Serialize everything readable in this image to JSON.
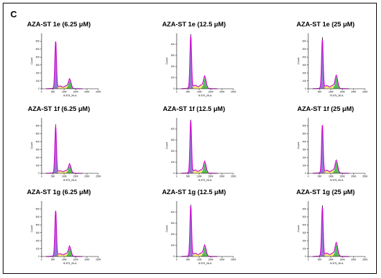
{
  "panel_label": "C",
  "colors": {
    "g1_fill": "#7b68c8",
    "s_fill": "#f2e56b",
    "g2_fill": "#3cb043",
    "fit_line": "#d400d4",
    "outline": "#000000",
    "peak_line": "#d400d4"
  },
  "chart_data": [
    {
      "type": "area",
      "title": "AZA-ST 1e (6.25 μM)",
      "xlabel": "B 575_26-A",
      "ylabel": "Count",
      "x_ticks": [
        "0",
        "50K",
        "100K",
        "150K",
        "200K",
        "250K"
      ],
      "xlim": [
        0,
        250000
      ],
      "ylim": [
        0,
        700
      ],
      "y_ticks": [
        "0",
        "100",
        "200",
        "300",
        "400",
        "500",
        "600"
      ],
      "g1_peak": {
        "x": 62000,
        "height": 580
      },
      "g2_peak": {
        "x": 124000,
        "height": 105
      },
      "s_level": 35
    },
    {
      "type": "area",
      "title": "AZA-ST 1e (12.5 μM)",
      "xlabel": "B 575_26-A",
      "ylabel": "Count",
      "x_ticks": [
        "0",
        "50K",
        "100K",
        "150K",
        "200K",
        "250K"
      ],
      "xlim": [
        0,
        250000
      ],
      "ylim": [
        0,
        500
      ],
      "y_ticks": [
        "0",
        "100",
        "200",
        "300",
        "400"
      ],
      "g1_peak": {
        "x": 62000,
        "height": 460
      },
      "g2_peak": {
        "x": 124000,
        "height": 95
      },
      "s_level": 32
    },
    {
      "type": "area",
      "title": "AZA-ST 1e (25 μM)",
      "xlabel": "B 575_26-A",
      "ylabel": "Count",
      "x_ticks": [
        "0",
        "50K",
        "100K",
        "150K",
        "200K",
        "250K"
      ],
      "xlim": [
        0,
        250000
      ],
      "ylim": [
        0,
        700
      ],
      "y_ticks": [
        "0",
        "100",
        "200",
        "300",
        "400",
        "500",
        "600"
      ],
      "g1_peak": {
        "x": 62000,
        "height": 600
      },
      "g2_peak": {
        "x": 124000,
        "height": 145
      },
      "s_level": 40
    },
    {
      "type": "area",
      "title": "AZA-ST 1f (6.25 μM)",
      "xlabel": "B 575_26-A",
      "ylabel": "Count",
      "x_ticks": [
        "0",
        "50K",
        "100K",
        "150K",
        "200K",
        "250K"
      ],
      "xlim": [
        0,
        250000
      ],
      "ylim": [
        0,
        700
      ],
      "y_ticks": [
        "0",
        "100",
        "200",
        "300",
        "400",
        "500",
        "600"
      ],
      "g1_peak": {
        "x": 62000,
        "height": 570
      },
      "g2_peak": {
        "x": 124000,
        "height": 100
      },
      "s_level": 34
    },
    {
      "type": "area",
      "title": "AZA-ST 1f (12.5 μM)",
      "xlabel": "B 575_26-A",
      "ylabel": "Count",
      "x_ticks": [
        "0",
        "50K",
        "100K",
        "150K",
        "200K",
        "250K"
      ],
      "xlim": [
        0,
        250000
      ],
      "ylim": [
        0,
        500
      ],
      "y_ticks": [
        "0",
        "100",
        "200",
        "300",
        "400"
      ],
      "g1_peak": {
        "x": 62000,
        "height": 460
      },
      "g2_peak": {
        "x": 124000,
        "height": 90
      },
      "s_level": 30
    },
    {
      "type": "area",
      "title": "AZA-ST 1f (25 μM)",
      "xlabel": "B 575_26-A",
      "ylabel": "Count",
      "x_ticks": [
        "0",
        "50K",
        "100K",
        "150K",
        "200K",
        "250K"
      ],
      "xlim": [
        0,
        250000
      ],
      "ylim": [
        0,
        700
      ],
      "y_ticks": [
        "0",
        "100",
        "200",
        "300",
        "400",
        "500",
        "600"
      ],
      "g1_peak": {
        "x": 62000,
        "height": 590
      },
      "g2_peak": {
        "x": 124000,
        "height": 140
      },
      "s_level": 38
    },
    {
      "type": "area",
      "title": "AZA-ST 1g (6.25 μM)",
      "xlabel": "B 575_26-A",
      "ylabel": "Count",
      "x_ticks": [
        "0",
        "50K",
        "100K",
        "150K",
        "200K",
        "250K"
      ],
      "xlim": [
        0,
        250000
      ],
      "ylim": [
        0,
        700
      ],
      "y_ticks": [
        "0",
        "100",
        "200",
        "300",
        "400",
        "500",
        "600"
      ],
      "g1_peak": {
        "x": 62000,
        "height": 560
      },
      "g2_peak": {
        "x": 124000,
        "height": 110
      },
      "s_level": 36
    },
    {
      "type": "area",
      "title": "AZA-ST 1g (12.5 μM)",
      "xlabel": "B 575_26-A",
      "ylabel": "Count",
      "x_ticks": [
        "0",
        "50K",
        "100K",
        "150K",
        "200K",
        "250K"
      ],
      "xlim": [
        0,
        250000
      ],
      "ylim": [
        0,
        500
      ],
      "y_ticks": [
        "0",
        "100",
        "200",
        "300",
        "400"
      ],
      "g1_peak": {
        "x": 62000,
        "height": 440
      },
      "g2_peak": {
        "x": 124000,
        "height": 85
      },
      "s_level": 30
    },
    {
      "type": "area",
      "title": "AZA-ST 1g (25 μM)",
      "xlabel": "B 575_26-A",
      "ylabel": "Count",
      "x_ticks": [
        "0",
        "50K",
        "100K",
        "150K",
        "200K",
        "250K"
      ],
      "xlim": [
        0,
        250000
      ],
      "ylim": [
        0,
        700
      ],
      "y_ticks": [
        "0",
        "100",
        "200",
        "300",
        "400",
        "500",
        "600"
      ],
      "g1_peak": {
        "x": 62000,
        "height": 600
      },
      "g2_peak": {
        "x": 124000,
        "height": 150
      },
      "s_level": 42
    }
  ]
}
